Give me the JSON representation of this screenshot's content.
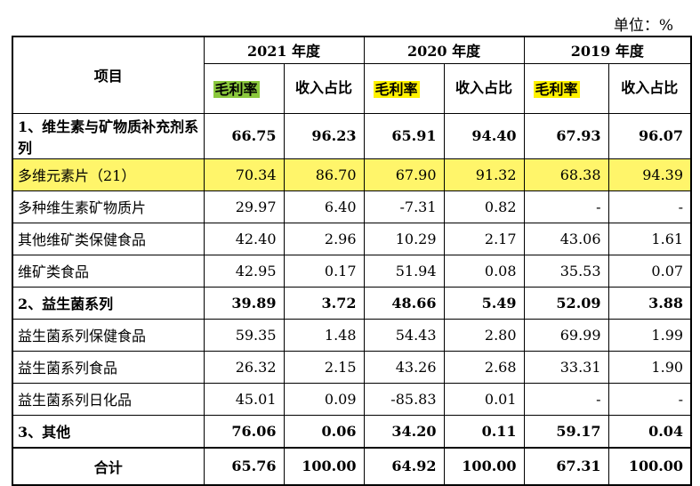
{
  "unit_label": "单位：%",
  "header": {
    "item": "项目",
    "years": [
      "2021 年度",
      "2020 年度",
      "2019 年度"
    ],
    "col_margin": "毛利率",
    "col_share": "收入占比"
  },
  "rows": [
    {
      "name": "1、维生素与矿物质补充剂系列",
      "values": [
        "66.75",
        "96.23",
        "65.91",
        "94.40",
        "67.93",
        "96.07"
      ]
    },
    {
      "name": "多维元素片（21）",
      "values": [
        "70.34",
        "86.70",
        "67.90",
        "91.32",
        "68.38",
        "94.39"
      ]
    },
    {
      "name": "多种维生素矿物质片",
      "values": [
        "29.97",
        "6.40",
        "-7.31",
        "0.82",
        "-",
        "-"
      ]
    },
    {
      "name": "其他维矿类保健食品",
      "values": [
        "42.40",
        "2.96",
        "10.29",
        "2.17",
        "43.06",
        "1.61"
      ]
    },
    {
      "name": "维矿类食品",
      "values": [
        "42.95",
        "0.17",
        "51.94",
        "0.08",
        "35.53",
        "0.07"
      ]
    },
    {
      "name": "2、益生菌系列",
      "values": [
        "39.89",
        "3.72",
        "48.66",
        "5.49",
        "52.09",
        "3.88"
      ]
    },
    {
      "name": "益生菌系列保健食品",
      "values": [
        "59.35",
        "1.48",
        "54.43",
        "2.80",
        "69.99",
        "1.99"
      ]
    },
    {
      "name": "益生菌系列食品",
      "values": [
        "26.32",
        "2.15",
        "43.26",
        "2.68",
        "33.31",
        "1.90"
      ]
    },
    {
      "name": "益生菌系列日化品",
      "values": [
        "45.01",
        "0.09",
        "-85.83",
        "0.01",
        "-",
        "-"
      ]
    },
    {
      "name": "3、其他",
      "values": [
        "76.06",
        "0.06",
        "34.20",
        "0.11",
        "59.17",
        "0.04"
      ]
    },
    {
      "name": "合计",
      "values": [
        "65.76",
        "100.00",
        "64.92",
        "100.00",
        "67.31",
        "100.00"
      ]
    }
  ],
  "colors": {
    "highlight_green": "#8bc83d",
    "highlight_yellow": "#fff200",
    "row_highlight": "#fff56a"
  }
}
